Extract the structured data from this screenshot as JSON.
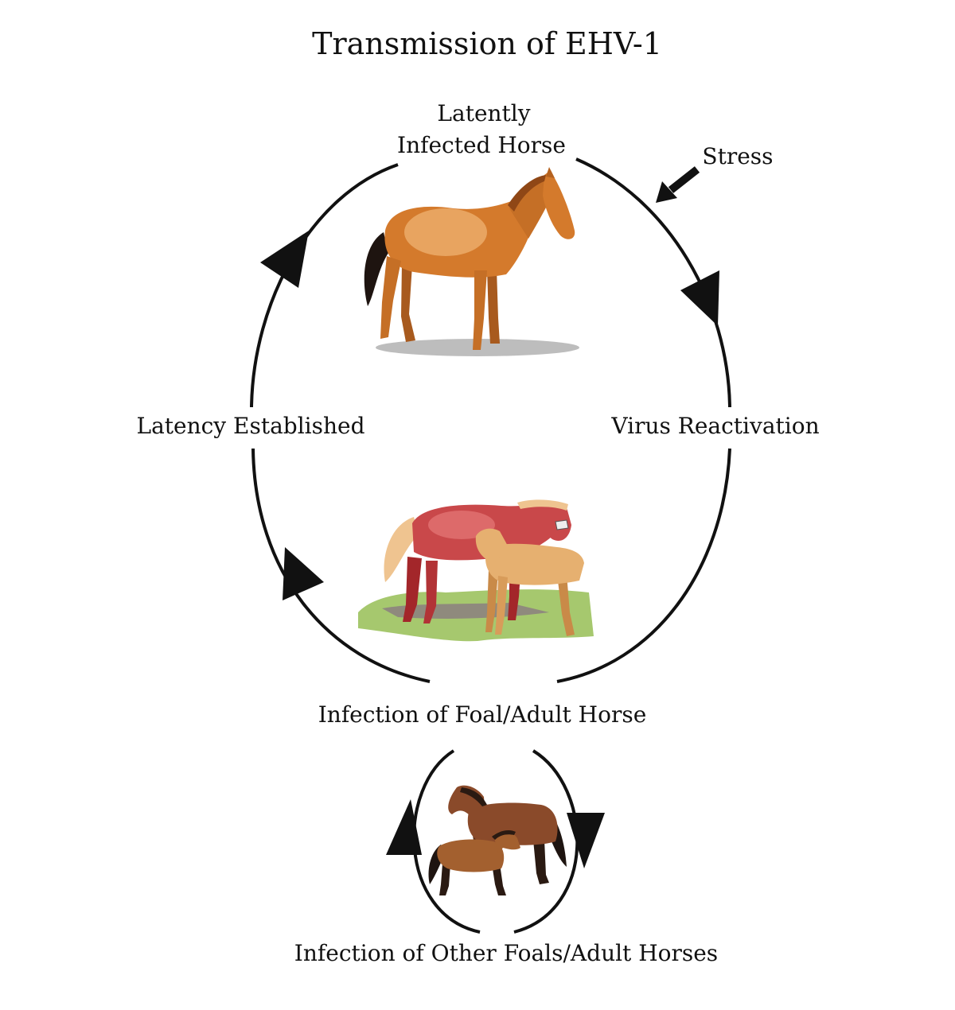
{
  "title": "Transmission of EHV-1",
  "stages": {
    "latent_horse_line1": "Latently",
    "latent_horse_line2": "Infected Horse",
    "virus_reactivation": "Virus Reactivation",
    "latency_established": "Latency Established",
    "infection_foal_adult": "Infection of Foal/Adult Horse",
    "infection_other": "Infection of Other Foals/Adult Horses"
  },
  "trigger": {
    "label": "Stress"
  },
  "colors": {
    "stroke": "#111111",
    "horse_chestnut": "#d47a2c",
    "horse_chestnut_light": "#e8a460",
    "mare_red": "#c9484a",
    "foal_tan": "#e6b070",
    "horse_bay": "#8a4a2a",
    "grass": "#a6c86e",
    "shadow": "#bdbdbd"
  },
  "icons": {
    "top": "standing-chestnut-horse-icon",
    "middle": "mare-and-foal-icon",
    "bottom": "bay-mare-and-foal-icon"
  }
}
